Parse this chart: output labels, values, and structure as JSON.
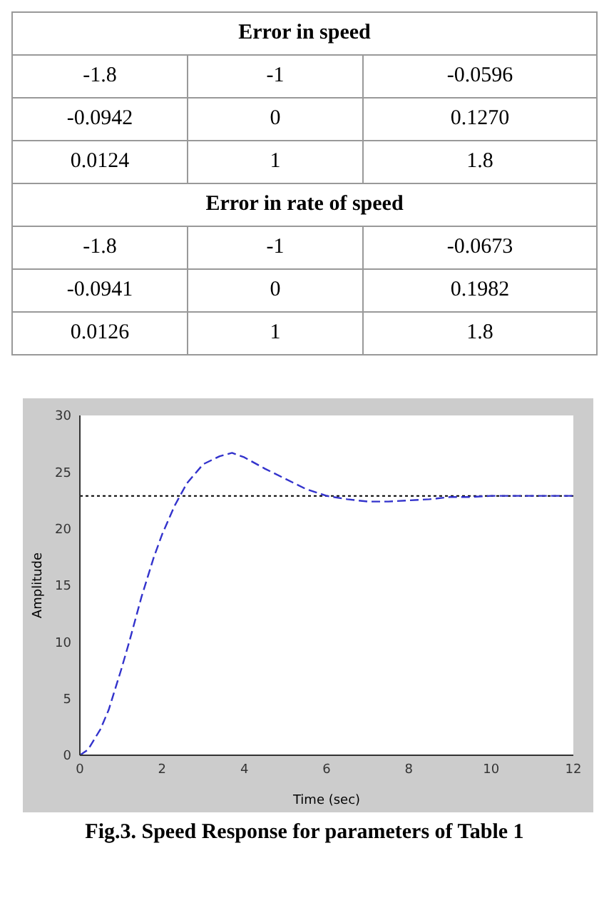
{
  "chart_data": [
    {
      "type": "other",
      "title": "Error in speed",
      "annotations": [
        "-1.8",
        "-1",
        "-0.0596",
        "-0.0942",
        "0",
        "0.1270",
        "0.0124",
        "1",
        "1.8"
      ]
    },
    {
      "type": "other",
      "title": "Error in rate of speed",
      "annotations": [
        "-1.8",
        "-1",
        "-0.0673",
        "-0.0941",
        "0",
        "0.1982",
        "0.0126",
        "1",
        "1.8"
      ]
    },
    {
      "type": "line",
      "xlabel": "Time (sec)",
      "ylabel": "Amplitude",
      "annotations": [
        "Fig.3. Speed Response for parameters of Table 1"
      ],
      "xlim": [
        0,
        12
      ],
      "xticks": [
        0,
        2,
        4,
        6,
        8,
        10,
        12
      ],
      "ylim": [
        0,
        30
      ],
      "yticks": [
        0,
        5,
        10,
        15,
        20,
        25,
        30
      ],
      "grid": false,
      "marker": "none",
      "line_style": "dashed",
      "ref_lines": [
        {
          "axis": "y",
          "value": 22.9,
          "color": "#000000",
          "line_style": "dotted"
        }
      ],
      "series": [
        {
          "color": "#3333cc",
          "x": [
            0,
            0.2,
            0.5,
            0.7,
            1,
            1.2,
            1.5,
            1.8,
            2,
            2.3,
            2.6,
            3,
            3.4,
            3.7,
            4,
            4.5,
            5,
            5.5,
            6,
            6.5,
            7,
            7.5,
            8,
            8.5,
            9,
            9.5,
            10,
            11,
            12
          ],
          "values": [
            0,
            0.5,
            2.3,
            4,
            7.5,
            10,
            14,
            17.5,
            19.5,
            22,
            24,
            25.7,
            26.4,
            26.7,
            26.3,
            25.3,
            24.4,
            23.5,
            22.9,
            22.6,
            22.4,
            22.4,
            22.5,
            22.6,
            22.8,
            22.8,
            22.9,
            22.9,
            22.9
          ]
        }
      ]
    }
  ]
}
